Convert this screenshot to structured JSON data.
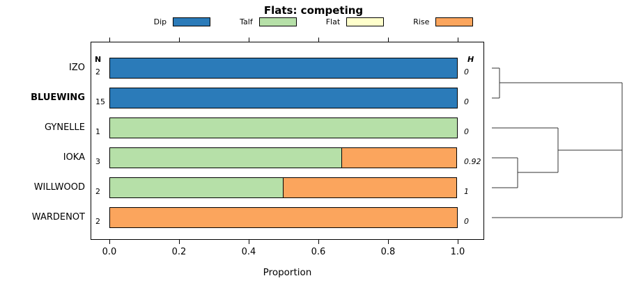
{
  "chart_data": {
    "type": "bar",
    "variant": "horizontal-stacked-with-dendrogram",
    "title": "Flats: competing",
    "xlabel": "Proportion",
    "xlim": [
      0,
      1
    ],
    "grid": false,
    "legend_position": "top",
    "xticks": [
      {
        "value": 0.0,
        "label": "0.0"
      },
      {
        "value": 0.2,
        "label": "0.2"
      },
      {
        "value": 0.4,
        "label": "0.4"
      },
      {
        "value": 0.6,
        "label": "0.6"
      },
      {
        "value": 0.8,
        "label": "0.8"
      },
      {
        "value": 1.0,
        "label": "1.0"
      }
    ],
    "legend": [
      {
        "label": "Dip",
        "color": "#2b7bb9"
      },
      {
        "label": "Talf",
        "color": "#b6e0a8"
      },
      {
        "label": "Flat",
        "color": "#ffffcc"
      },
      {
        "label": "Rise",
        "color": "#fba55d"
      }
    ],
    "col_headers": {
      "left": "N",
      "right": "H"
    },
    "rows": [
      {
        "label": "IZO",
        "bold": false,
        "n": "2",
        "h": "0",
        "segments": [
          {
            "series": "Dip",
            "value": 1.0
          }
        ]
      },
      {
        "label": "BLUEWING",
        "bold": true,
        "n": "15",
        "h": "0",
        "segments": [
          {
            "series": "Dip",
            "value": 1.0
          }
        ]
      },
      {
        "label": "GYNELLE",
        "bold": false,
        "n": "1",
        "h": "0",
        "segments": [
          {
            "series": "Talf",
            "value": 1.0
          }
        ]
      },
      {
        "label": "IOKA",
        "bold": false,
        "n": "3",
        "h": "0.92",
        "segments": [
          {
            "series": "Talf",
            "value": 0.667
          },
          {
            "series": "Rise",
            "value": 0.333
          }
        ]
      },
      {
        "label": "WILLWOOD",
        "bold": false,
        "n": "2",
        "h": "1",
        "segments": [
          {
            "series": "Talf",
            "value": 0.5
          },
          {
            "series": "Rise",
            "value": 0.5
          }
        ]
      },
      {
        "label": "WARDENOT",
        "bold": false,
        "n": "2",
        "h": "0",
        "segments": [
          {
            "series": "Rise",
            "value": 1.0
          }
        ]
      }
    ],
    "dendrogram": {
      "segments": [
        [
          706,
          98,
          717,
          98
        ],
        [
          706,
          141,
          717,
          141
        ],
        [
          717,
          98,
          717,
          141
        ],
        [
          717,
          119,
          893,
          119
        ],
        [
          706,
          184,
          801,
          184
        ],
        [
          706,
          227,
          743,
          227
        ],
        [
          706,
          270,
          743,
          270
        ],
        [
          743,
          227,
          743,
          270
        ],
        [
          743,
          248,
          801,
          248
        ],
        [
          801,
          184,
          801,
          248
        ],
        [
          801,
          216,
          893,
          216
        ],
        [
          706,
          313,
          893,
          313
        ],
        [
          893,
          119,
          893,
          313
        ]
      ]
    }
  }
}
